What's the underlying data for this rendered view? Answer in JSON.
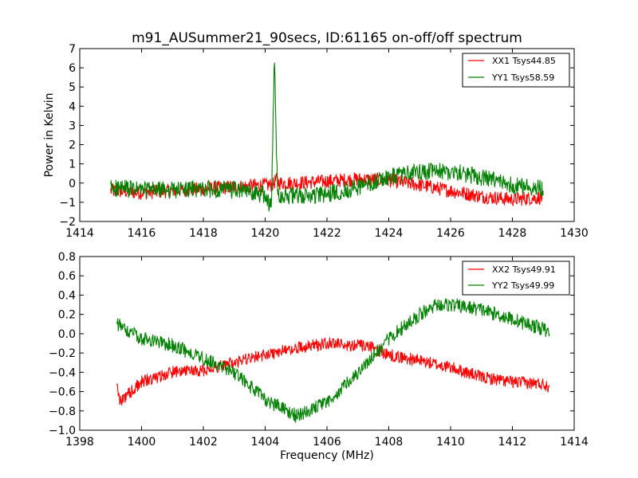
{
  "title": "m91_AUSummer21_90secs, ID:61165 on-off/off spectrum",
  "chart_data": [
    {
      "type": "line",
      "title": "m91_AUSummer21_90secs, ID:61165 on-off/off spectrum",
      "xlabel": "",
      "ylabel": "Power in Kelvin",
      "xlim": [
        1414,
        1430
      ],
      "ylim": [
        -2,
        7
      ],
      "x_ticks": [
        "1414",
        "1416",
        "1418",
        "1420",
        "1422",
        "1424",
        "1426",
        "1428",
        "1430"
      ],
      "y_ticks": [
        "−2",
        "−1",
        "0",
        "1",
        "2",
        "3",
        "4",
        "5",
        "6",
        "7"
      ],
      "grid": false,
      "legend_position": "top-right",
      "series": [
        {
          "name": "XX1 Tsys44.85",
          "color": "#ff0000",
          "points": [
            [
              1415.0,
              -0.4
            ],
            [
              1416.0,
              -0.5
            ],
            [
              1417.0,
              -0.4
            ],
            [
              1418.0,
              -0.3
            ],
            [
              1419.0,
              -0.2
            ],
            [
              1420.0,
              -0.1
            ],
            [
              1420.25,
              -0.1
            ],
            [
              1420.35,
              0.2
            ],
            [
              1420.45,
              0.0
            ],
            [
              1421.0,
              0.0
            ],
            [
              1422.0,
              0.1
            ],
            [
              1423.0,
              0.2
            ],
            [
              1424.0,
              0.15
            ],
            [
              1425.0,
              -0.1
            ],
            [
              1426.0,
              -0.4
            ],
            [
              1427.0,
              -0.7
            ],
            [
              1428.0,
              -0.85
            ],
            [
              1429.0,
              -0.75
            ]
          ]
        },
        {
          "name": "YY1 Tsys58.59",
          "color": "#008000",
          "points": [
            [
              1415.0,
              -0.25
            ],
            [
              1416.0,
              -0.35
            ],
            [
              1417.0,
              -0.35
            ],
            [
              1418.0,
              -0.3
            ],
            [
              1419.0,
              -0.35
            ],
            [
              1420.0,
              -0.6
            ],
            [
              1420.2,
              -1.3
            ],
            [
              1420.3,
              6.6
            ],
            [
              1420.4,
              -0.6
            ],
            [
              1421.0,
              -0.7
            ],
            [
              1422.0,
              -0.6
            ],
            [
              1423.0,
              -0.2
            ],
            [
              1424.0,
              0.3
            ],
            [
              1425.0,
              0.6
            ],
            [
              1426.0,
              0.6
            ],
            [
              1427.0,
              0.3
            ],
            [
              1428.0,
              -0.1
            ],
            [
              1429.0,
              -0.25
            ]
          ]
        }
      ]
    },
    {
      "type": "line",
      "title": "",
      "xlabel": "Frequency (MHz)",
      "ylabel": "",
      "xlim": [
        1398,
        1414
      ],
      "ylim": [
        -1.0,
        0.8
      ],
      "x_ticks": [
        "1398",
        "1400",
        "1402",
        "1404",
        "1406",
        "1408",
        "1410",
        "1412",
        "1414"
      ],
      "y_ticks": [
        "−1.0",
        "−0.8",
        "−0.6",
        "−0.4",
        "−0.2",
        "0.0",
        "0.2",
        "0.4",
        "0.6",
        "0.8"
      ],
      "grid": false,
      "legend_position": "top-right",
      "series": [
        {
          "name": "XX2 Tsys49.91",
          "color": "#ff0000",
          "points": [
            [
              1399.2,
              -0.55
            ],
            [
              1399.3,
              -0.7
            ],
            [
              1400.0,
              -0.5
            ],
            [
              1401.0,
              -0.4
            ],
            [
              1402.0,
              -0.38
            ],
            [
              1403.0,
              -0.3
            ],
            [
              1404.0,
              -0.22
            ],
            [
              1405.0,
              -0.15
            ],
            [
              1406.0,
              -0.1
            ],
            [
              1407.0,
              -0.12
            ],
            [
              1407.5,
              -0.15
            ],
            [
              1408.0,
              -0.22
            ],
            [
              1409.0,
              -0.28
            ],
            [
              1410.0,
              -0.35
            ],
            [
              1411.0,
              -0.45
            ],
            [
              1412.0,
              -0.5
            ],
            [
              1413.0,
              -0.52
            ],
            [
              1413.2,
              -0.55
            ]
          ]
        },
        {
          "name": "YY2 Tsys49.99",
          "color": "#008000",
          "points": [
            [
              1399.2,
              0.1
            ],
            [
              1400.0,
              -0.05
            ],
            [
              1401.0,
              -0.12
            ],
            [
              1402.0,
              -0.25
            ],
            [
              1403.0,
              -0.4
            ],
            [
              1404.0,
              -0.68
            ],
            [
              1405.0,
              -0.85
            ],
            [
              1406.0,
              -0.72
            ],
            [
              1407.0,
              -0.4
            ],
            [
              1408.0,
              -0.05
            ],
            [
              1409.0,
              0.2
            ],
            [
              1409.5,
              0.3
            ],
            [
              1410.0,
              0.3
            ],
            [
              1411.0,
              0.25
            ],
            [
              1412.0,
              0.15
            ],
            [
              1413.0,
              0.05
            ],
            [
              1413.2,
              0.0
            ]
          ]
        }
      ]
    }
  ]
}
